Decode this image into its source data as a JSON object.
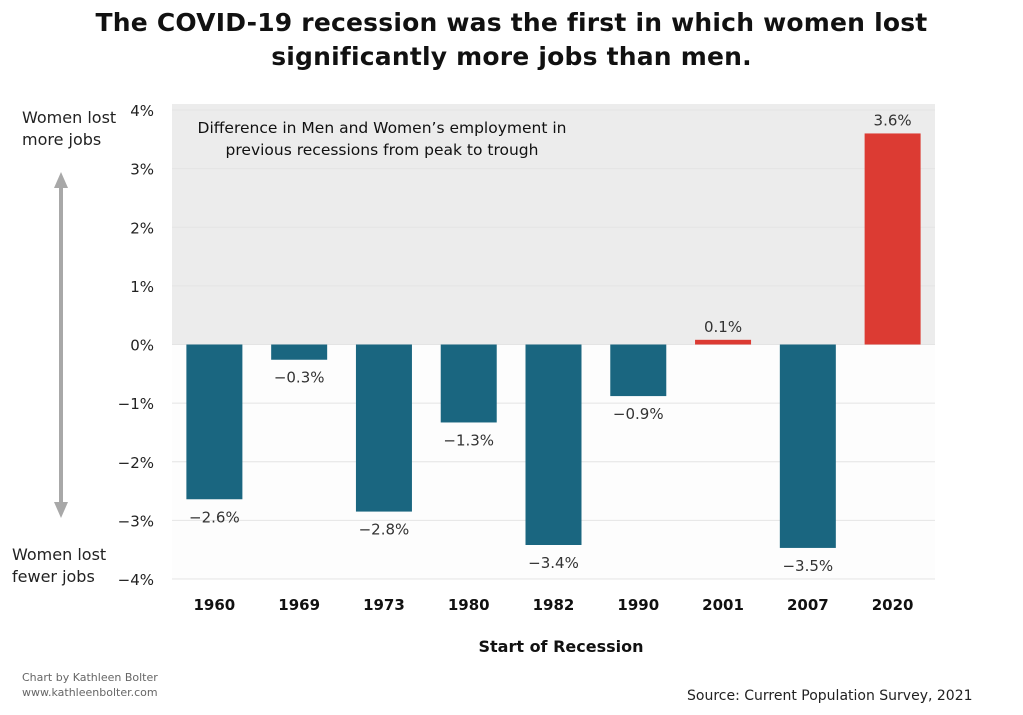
{
  "title": [
    "The COVID-19 recession was the first in which women lost",
    "significantly more jobs than men."
  ],
  "side_labels": {
    "top": [
      "Women lost",
      "more jobs"
    ],
    "bottom": [
      "Women lost",
      "fewer jobs"
    ]
  },
  "credit": [
    "Chart by Kathleen Bolter",
    "www.kathleenbolter.com"
  ],
  "source": "Source: Current Population Survey, 2021",
  "colors": {
    "negative": "#1a6680",
    "positive": "#dc3b33",
    "shade": "#ececec",
    "arrow": "#a8a8a8"
  },
  "chart_data": {
    "type": "bar",
    "title": "The COVID-19 recession was the first in which women lost significantly more jobs than men.",
    "annotation": [
      "Difference in Men and Women’s employment in",
      "previous recessions from peak to trough"
    ],
    "xlabel": "Start of Recession",
    "ylabel": "",
    "categories": [
      "1960",
      "1969",
      "1973",
      "1980",
      "1982",
      "1990",
      "2001",
      "2007",
      "2020"
    ],
    "values": [
      -2.64,
      -0.26,
      -2.85,
      -1.33,
      -3.42,
      -0.88,
      0.08,
      -3.47,
      3.6
    ],
    "value_labels": [
      "−2.6%",
      "−0.3%",
      "−2.8%",
      "−1.3%",
      "−3.4%",
      "−0.9%",
      "0.1%",
      "−3.5%",
      "3.6%"
    ],
    "yticks": [
      4,
      3,
      2,
      1,
      0,
      -1,
      -2,
      -3,
      -4
    ],
    "ytick_labels": [
      "4%",
      "3%",
      "2%",
      "1%",
      "0%",
      "−1%",
      "−2%",
      "−3%",
      "−4%"
    ],
    "ylim": [
      -4,
      4
    ],
    "grid": true
  }
}
